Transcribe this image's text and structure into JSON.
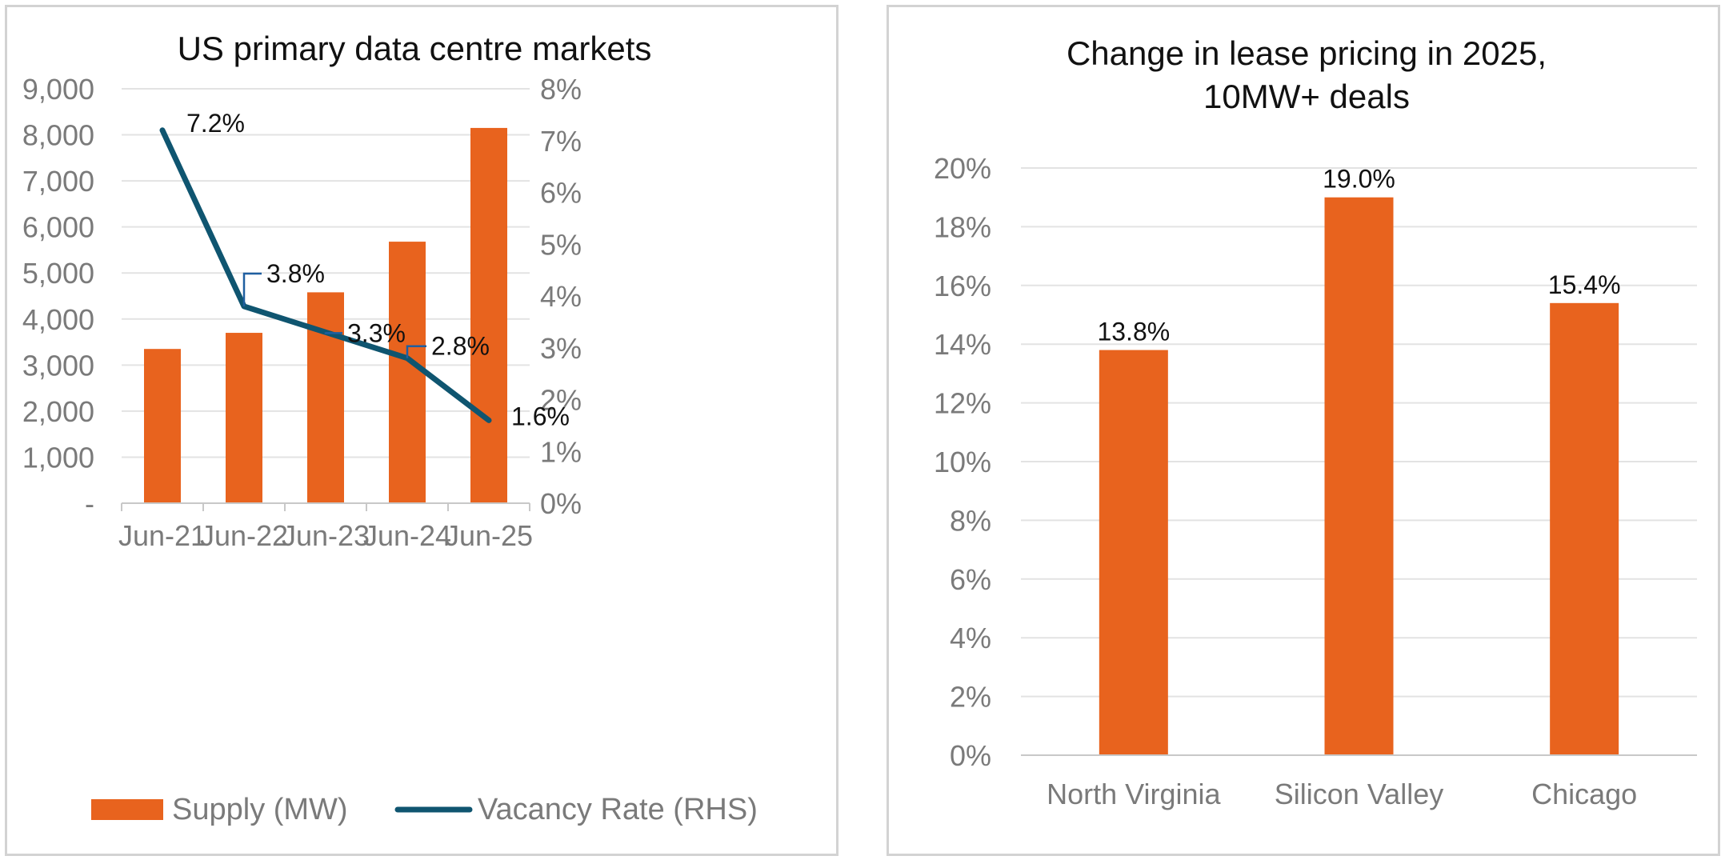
{
  "colors": {
    "bar": "#E8631E",
    "line": "#0F5570",
    "leader": "#1F5FA0",
    "grid": "#e3e3e3",
    "axis": "#c8c8c8"
  },
  "chart_data": [
    {
      "type": "bar",
      "title": "US primary data centre markets",
      "categories": [
        "Jun-21",
        "Jun-22",
        "Jun-23",
        "Jun-24",
        "Jun-25"
      ],
      "series": [
        {
          "name": "Supply (MW)",
          "type": "bar",
          "axis": "left",
          "values": [
            3350,
            3700,
            4580,
            5680,
            8150
          ]
        },
        {
          "name": "Vacancy Rate (RHS)",
          "type": "line",
          "axis": "right",
          "values": [
            7.2,
            3.8,
            3.3,
            2.8,
            1.6
          ],
          "labels": [
            "7.2%",
            "3.8%",
            "3.3%",
            "2.8%",
            "1.6%"
          ]
        }
      ],
      "y_left": {
        "min": 0,
        "max": 9000,
        "ticks": [
          "-",
          "1,000",
          "2,000",
          "3,000",
          "4,000",
          "5,000",
          "6,000",
          "7,000",
          "8,000",
          "9,000"
        ]
      },
      "y_right": {
        "min": 0,
        "max": 8,
        "ticks": [
          "0%",
          "1%",
          "2%",
          "3%",
          "4%",
          "5%",
          "6%",
          "7%",
          "8%"
        ]
      },
      "legend_position": "bottom",
      "grid": true
    },
    {
      "type": "bar",
      "title": [
        "Change in lease pricing in 2025,",
        "10MW+ deals"
      ],
      "categories": [
        "North Virginia",
        "Silicon Valley",
        "Chicago"
      ],
      "values": [
        13.8,
        19.0,
        15.4
      ],
      "labels": [
        "13.8%",
        "19.0%",
        "15.4%"
      ],
      "y": {
        "min": 0,
        "max": 20,
        "ticks": [
          "0%",
          "2%",
          "4%",
          "6%",
          "8%",
          "10%",
          "12%",
          "14%",
          "16%",
          "18%",
          "20%"
        ]
      },
      "grid": true
    }
  ]
}
